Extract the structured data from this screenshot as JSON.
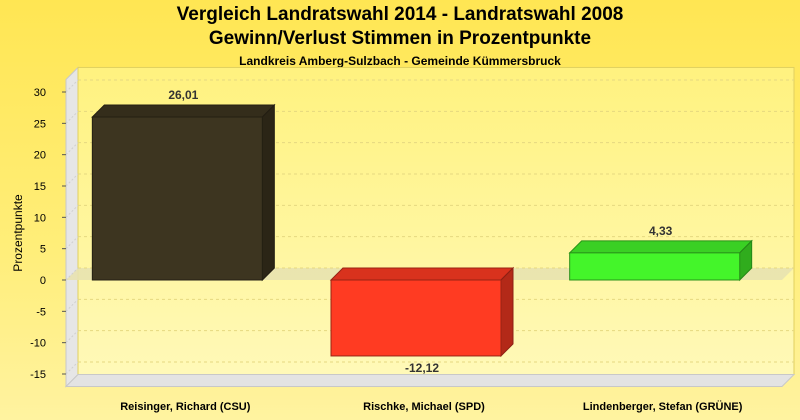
{
  "title": "Vergleich Landratswahl 2014 - Landratswahl 2008",
  "subtitle_line2": "Gewinn/Verlust Stimmen in Prozentpunkte",
  "subtitle": "Landkreis Amberg-Sulzbach - Gemeinde Kümmersbruck",
  "chart_data": {
    "type": "bar",
    "title": "Vergleich Landratswahl 2014 - Landratswahl 2008",
    "ylabel": "Prozentpunkte",
    "xlabel": "",
    "ylim": [
      -17,
      32
    ],
    "yticks": [
      30,
      25,
      20,
      15,
      10,
      5,
      0,
      -5,
      -10,
      -15
    ],
    "grid": true,
    "categories": [
      "Reisinger, Richard (CSU)",
      "Rischke, Michael (SPD)",
      "Lindenberger, Stefan (GRÜNE)"
    ],
    "values": [
      26.01,
      -12.12,
      4.33
    ],
    "value_labels": [
      "26,01",
      "-12,12",
      "4,33"
    ],
    "colors": [
      "#3d3520",
      "#ff3b22",
      "#44f52a"
    ]
  }
}
